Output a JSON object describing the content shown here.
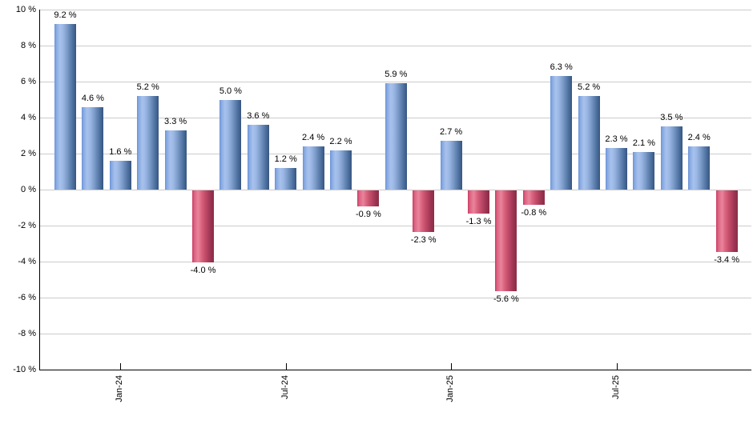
{
  "chart_data": {
    "type": "bar",
    "title": "",
    "unit": "%",
    "legend": "none",
    "grid": "horizontal",
    "y_axis": {
      "min": -10,
      "max": 10,
      "step": 2,
      "tick_labels": [
        "10 %",
        "8 %",
        "6 %",
        "4 %",
        "2 %",
        "0 %",
        "-2 %",
        "-4 %",
        "-6 %",
        "-8 %",
        "-10 %"
      ]
    },
    "x_ticks": [
      {
        "label": "Jan-24",
        "bar_index": 2
      },
      {
        "label": "Jul-24",
        "bar_index": 8
      },
      {
        "label": "Jan-25",
        "bar_index": 14
      },
      {
        "label": "Jul-25",
        "bar_index": 20
      }
    ],
    "bars": [
      {
        "value": 9.2,
        "label": "9.2 %"
      },
      {
        "value": 4.6,
        "label": "4.6 %"
      },
      {
        "value": 1.6,
        "label": "1.6 %"
      },
      {
        "value": 5.2,
        "label": "5.2 %"
      },
      {
        "value": 3.3,
        "label": "3.3 %"
      },
      {
        "value": -4.0,
        "label": "-4.0 %"
      },
      {
        "value": 5.0,
        "label": "5.0 %"
      },
      {
        "value": 3.6,
        "label": "3.6 %"
      },
      {
        "value": 1.2,
        "label": "1.2 %"
      },
      {
        "value": 2.4,
        "label": "2.4 %"
      },
      {
        "value": 2.2,
        "label": "2.2 %"
      },
      {
        "value": -0.9,
        "label": "-0.9 %"
      },
      {
        "value": 5.9,
        "label": "5.9 %"
      },
      {
        "value": -2.3,
        "label": "-2.3 %"
      },
      {
        "value": 2.7,
        "label": "2.7 %"
      },
      {
        "value": -1.3,
        "label": "-1.3 %"
      },
      {
        "value": -5.6,
        "label": "-5.6 %"
      },
      {
        "value": -0.8,
        "label": "-0.8 %"
      },
      {
        "value": 6.3,
        "label": "6.3 %"
      },
      {
        "value": 5.2,
        "label": "5.2 %"
      },
      {
        "value": 2.3,
        "label": "2.3 %"
      },
      {
        "value": 2.1,
        "label": "2.1 %"
      },
      {
        "value": 3.5,
        "label": "3.5 %"
      },
      {
        "value": 2.4,
        "label": "2.4 %"
      },
      {
        "value": -3.4,
        "label": "-3.4 %"
      }
    ],
    "colors": {
      "positive_bar": [
        "#6b92d6",
        "#a8c2ec",
        "#3a547f"
      ],
      "negative_bar": [
        "#cb3c62",
        "#e9849c",
        "#8c2d48"
      ],
      "gridline": "#cccccc",
      "axis": "#000000",
      "label_text": "#000000",
      "background": "#ffffff"
    }
  }
}
